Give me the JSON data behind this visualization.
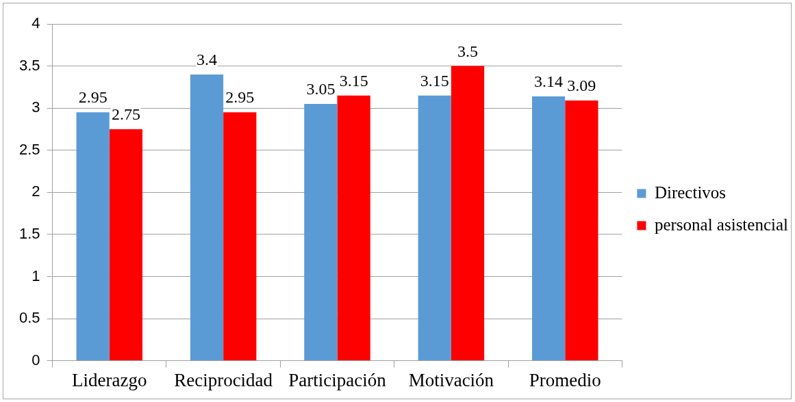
{
  "chart_data": {
    "type": "bar",
    "categories": [
      "Liderazgo",
      "Reciprocidad",
      "Participación",
      "Motivación",
      "Promedio"
    ],
    "series": [
      {
        "name": "Directivos",
        "color": "#5b9bd5",
        "values": [
          2.95,
          3.4,
          3.05,
          3.15,
          3.14
        ]
      },
      {
        "name": "personal asistencial",
        "color": "#ff0000",
        "values": [
          2.75,
          2.95,
          3.15,
          3.5,
          3.09
        ]
      }
    ],
    "ylim": [
      0,
      4
    ],
    "yticks": [
      0,
      0.5,
      1,
      1.5,
      2,
      2.5,
      3,
      3.5,
      4
    ],
    "grid": "y",
    "legend": "right",
    "data_labels": true
  }
}
